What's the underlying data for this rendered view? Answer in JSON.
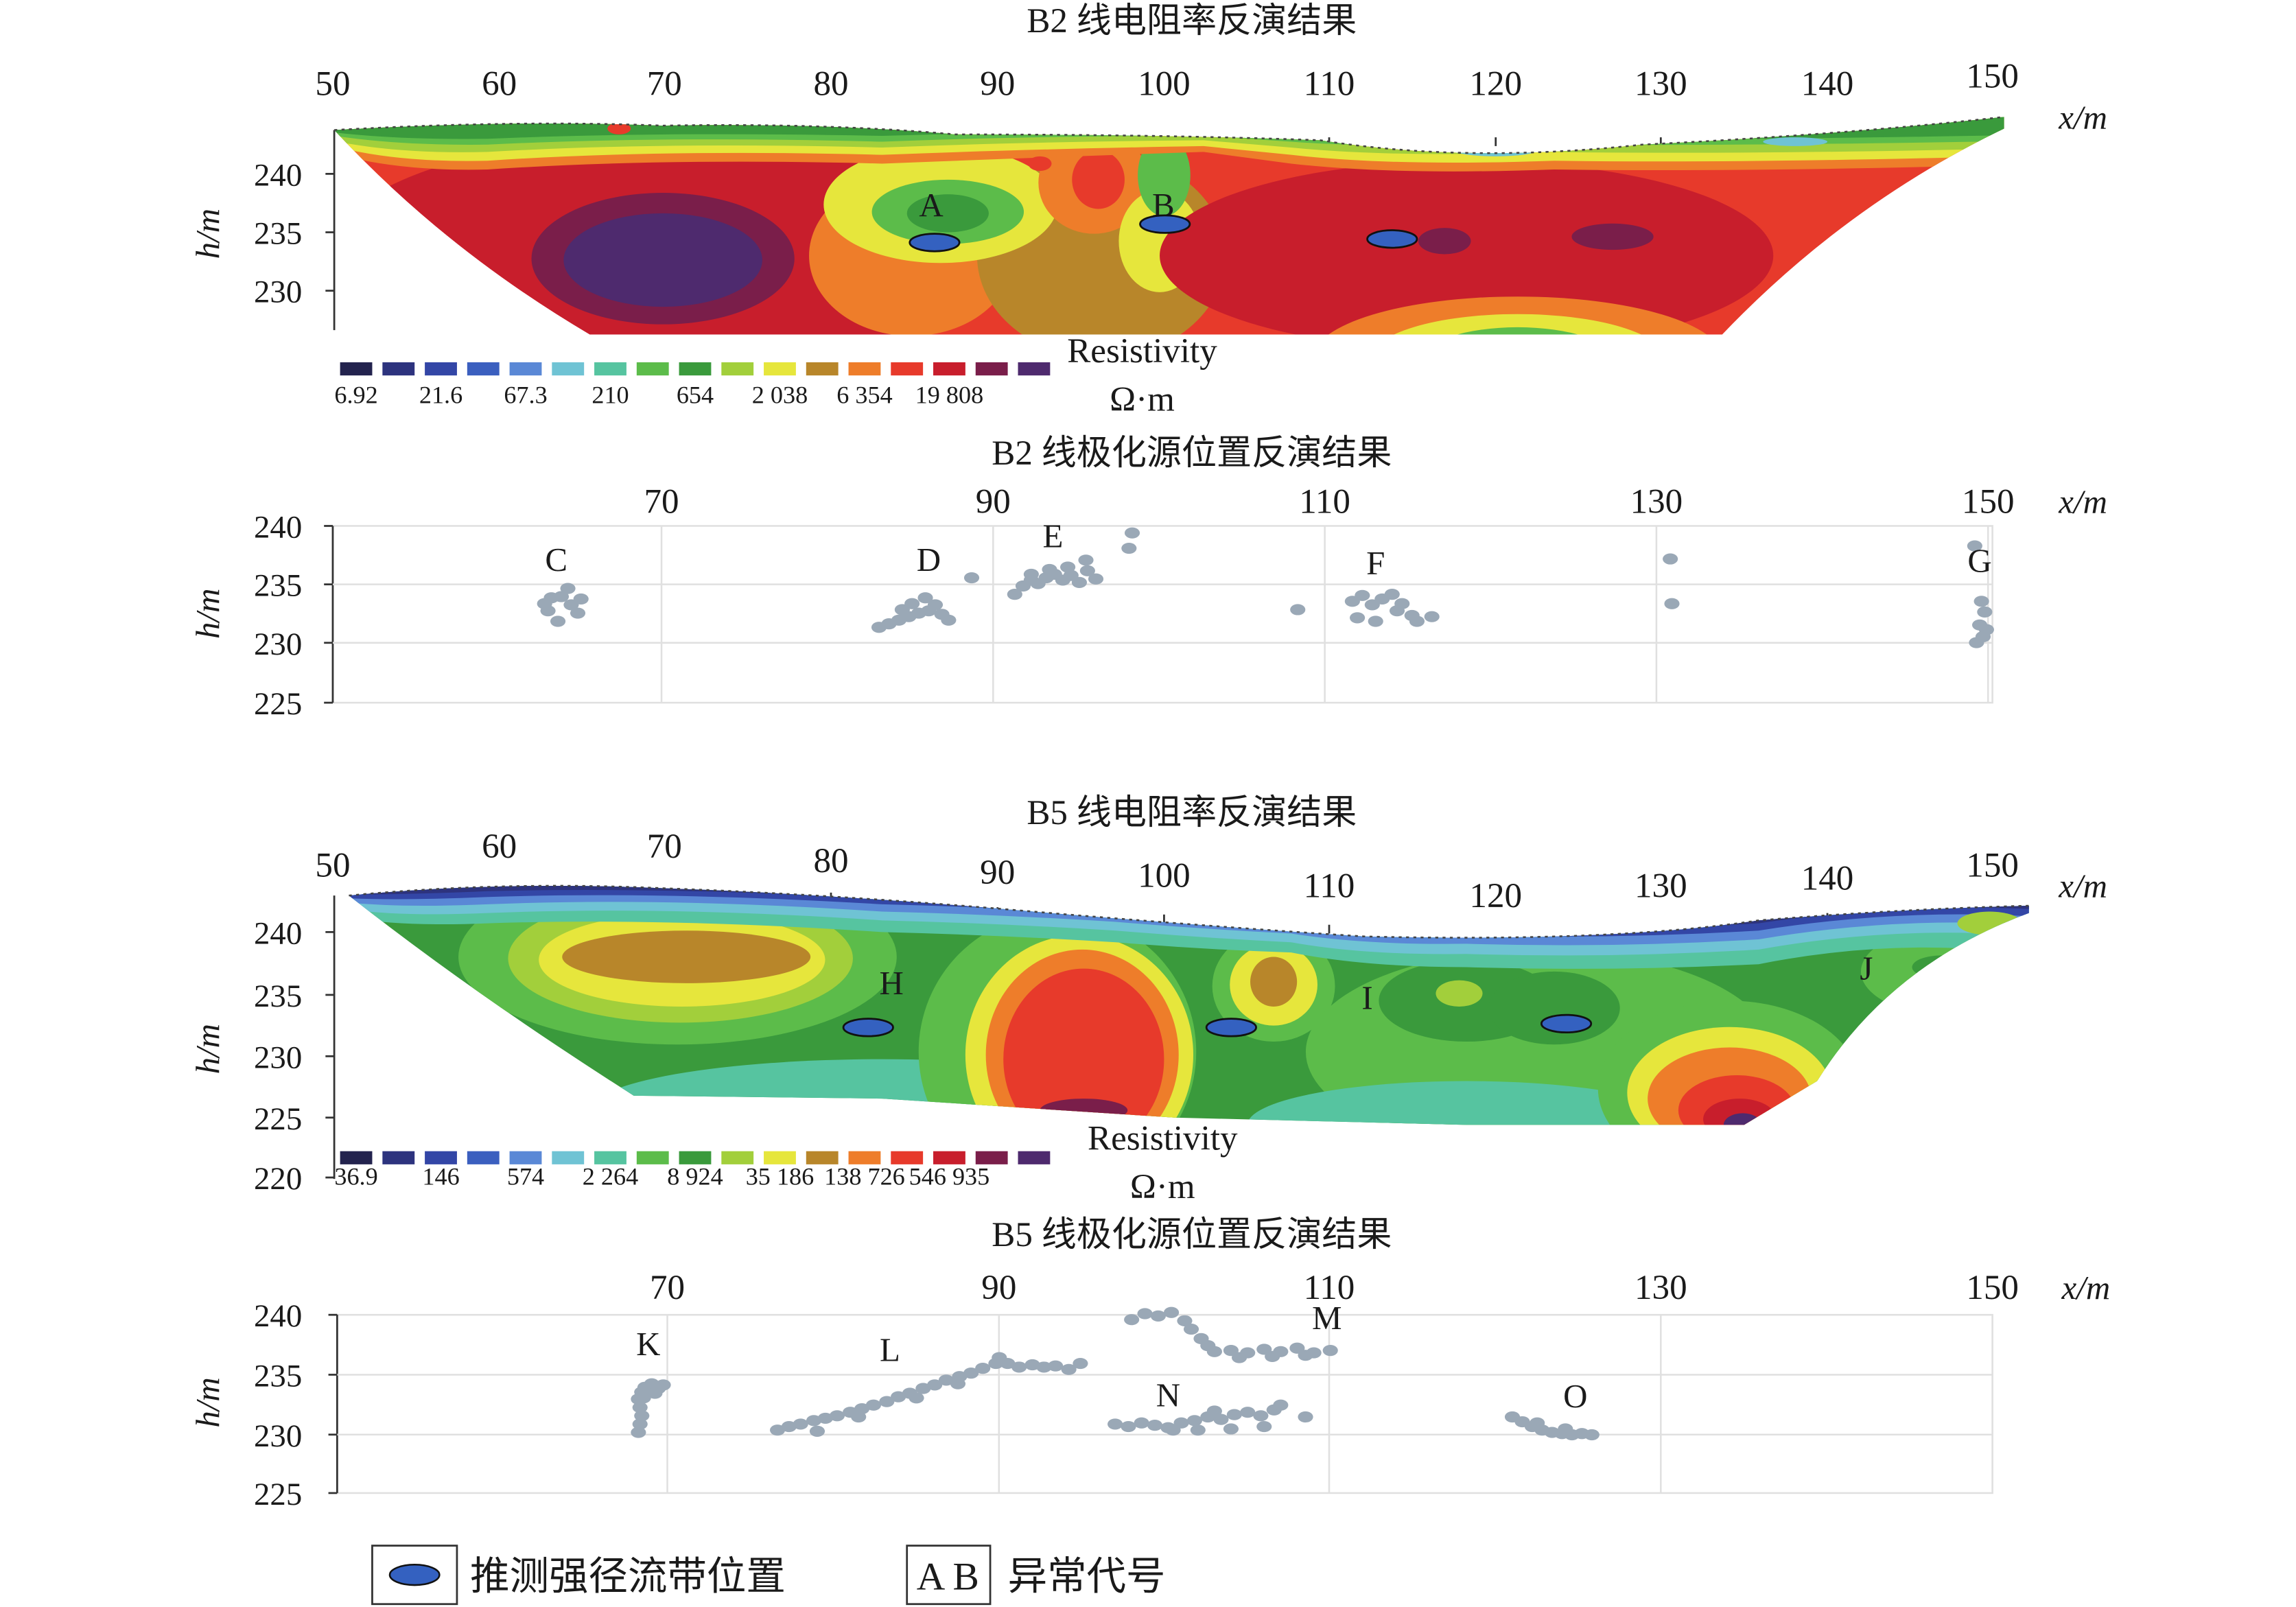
{
  "chart_data": [
    {
      "id": "b2_res",
      "type": "heatmap",
      "title": "B2 线电阻率反演结果",
      "xunit": "x/m",
      "yunit": "h/m",
      "xticks": [
        50,
        60,
        70,
        80,
        90,
        100,
        110,
        120,
        130,
        140,
        150
      ],
      "yticks": [
        240,
        235,
        230
      ],
      "xlim": [
        50,
        150
      ],
      "ylim": [
        226.5,
        244
      ],
      "colorbar": {
        "title": "Resistivity",
        "unit": "Ω·m",
        "labels": [
          "6.92",
          "21.6",
          "67.3",
          "210",
          "654",
          "2 038",
          "6 354",
          "19 808"
        ],
        "colors": [
          "#23234e",
          "#2d337e",
          "#3346a6",
          "#3b5fbf",
          "#5a88d6",
          "#6fc3d4",
          "#56c4a0",
          "#5cbc4a",
          "#3a9a3c",
          "#a2cf3b",
          "#e6e63c",
          "#b8862a",
          "#ee7d2a",
          "#e73a2b",
          "#c81e2c",
          "#7a1e4a",
          "#4e2a6e"
        ]
      },
      "markers": [
        {
          "label": "A",
          "x": 86,
          "y": 236.5
        },
        {
          "label": "B",
          "x": 100,
          "y": 236.5
        }
      ],
      "strong_runoff_zones": [
        {
          "x": 86.2,
          "y": 234.2
        },
        {
          "x": 100.1,
          "y": 235.8
        },
        {
          "x": 113.8,
          "y": 234.5
        }
      ]
    },
    {
      "id": "b2_ip",
      "type": "scatter",
      "title": "B2 线极化源位置反演结果",
      "xunit": "x/m",
      "yunit": "h/m",
      "xticks": [
        70,
        90,
        110,
        130,
        150
      ],
      "yticks": [
        240,
        235,
        230,
        225
      ],
      "xlim": [
        50,
        150
      ],
      "ylim": [
        225,
        240
      ],
      "markers": [
        {
          "label": "C",
          "x": 63.5,
          "y": 236.2
        },
        {
          "label": "D",
          "x": 86,
          "y": 236.2
        },
        {
          "label": "E",
          "x": 93.5,
          "y": 238.2
        },
        {
          "label": "F",
          "x": 113,
          "y": 235.9
        },
        {
          "label": "G",
          "x": 149.5,
          "y": 236.1
        }
      ],
      "clusters": [
        {
          "x": [
            63.2,
            63.8,
            64.4,
            63.0,
            64.8,
            65.0,
            62.8,
            63.6,
            64.2
          ],
          "y": [
            233.9,
            234.0,
            233.3,
            232.8,
            232.6,
            233.8,
            233.4,
            231.9,
            234.7
          ]
        },
        {
          "x": [
            83.0,
            83.6,
            84.2,
            84.8,
            85.4,
            86.0,
            86.4,
            85.8,
            85.0,
            84.4,
            86.8,
            87.2,
            88.6
          ],
          "y": [
            231.4,
            231.7,
            232.0,
            232.3,
            232.6,
            232.8,
            233.3,
            233.9,
            233.4,
            232.9,
            232.5,
            232.0,
            235.6
          ]
        },
        {
          "x": [
            91.2,
            91.7,
            92.2,
            92.6,
            93.1,
            93.6,
            94.1,
            94.6,
            95.1,
            95.6,
            96.1,
            95.5,
            94.4,
            93.3,
            92.2,
            98.1,
            98.3
          ],
          "y": [
            234.2,
            234.9,
            235.4,
            235.1,
            235.6,
            235.9,
            235.4,
            235.8,
            235.2,
            236.2,
            235.5,
            237.1,
            236.5,
            236.3,
            235.9,
            238.1,
            239.4
          ]
        },
        {
          "x": [
            108.3,
            111.6,
            112.2,
            112.8,
            113.4,
            114.0,
            114.6,
            115.2,
            111.9,
            113.0,
            114.3,
            116.4,
            115.5
          ],
          "y": [
            232.9,
            233.6,
            234.1,
            233.3,
            233.8,
            234.2,
            233.4,
            232.4,
            232.2,
            231.9,
            232.8,
            232.3,
            231.9
          ]
        },
        {
          "x": [
            130.8,
            130.9,
            149.2,
            149.6,
            149.8,
            149.5,
            149.7,
            149.9,
            149.3
          ],
          "y": [
            237.2,
            233.4,
            238.3,
            233.6,
            232.7,
            231.6,
            230.6,
            231.2,
            230.1
          ]
        }
      ]
    },
    {
      "id": "b5_res",
      "type": "heatmap",
      "title": "B5 线电阻率反演结果",
      "xunit": "x/m",
      "yunit": "h/m",
      "xticks": [
        50,
        60,
        70,
        80,
        90,
        100,
        110,
        120,
        130,
        140,
        150
      ],
      "yticks": [
        240,
        235,
        230,
        225,
        220
      ],
      "xlim": [
        50,
        150
      ],
      "ylim": [
        220,
        243
      ],
      "colorbar": {
        "title": "Resistivity",
        "unit": "Ω·m",
        "labels": [
          "36.9",
          "146",
          "574",
          "2 264",
          "8 924",
          "35 186",
          "138 726",
          "546 935"
        ],
        "colors": [
          "#23234e",
          "#2d337e",
          "#3346a6",
          "#3b5fbf",
          "#5a88d6",
          "#6fc3d4",
          "#56c4a0",
          "#5cbc4a",
          "#3a9a3c",
          "#a2cf3b",
          "#e6e63c",
          "#b8862a",
          "#ee7d2a",
          "#e73a2b",
          "#c81e2c",
          "#7a1e4a",
          "#4e2a6e"
        ]
      },
      "markers": [
        {
          "label": "H",
          "x": 83.6,
          "y": 235
        },
        {
          "label": "I",
          "x": 112.3,
          "y": 233.8
        },
        {
          "label": "J",
          "x": 142.4,
          "y": 236.2
        }
      ],
      "strong_runoff_zones": [
        {
          "x": 82.2,
          "y": 232.3
        },
        {
          "x": 104.1,
          "y": 232.3
        },
        {
          "x": 124.3,
          "y": 232.6
        }
      ]
    },
    {
      "id": "b5_ip",
      "type": "scatter",
      "title": "B5 线极化源位置反演结果",
      "xunit": "x/m",
      "yunit": "h/m",
      "xticks": [
        70,
        90,
        110,
        130,
        150
      ],
      "yticks": [
        240,
        235,
        230,
        225
      ],
      "xlim": [
        50,
        150
      ],
      "ylim": [
        225,
        240
      ],
      "markers": [
        {
          "label": "K",
          "x": 68.8,
          "y": 236.6
        },
        {
          "label": "L",
          "x": 83.4,
          "y": 236.1
        },
        {
          "label": "M",
          "x": 109.8,
          "y": 238.8
        },
        {
          "label": "N",
          "x": 100.2,
          "y": 232.3
        },
        {
          "label": "O",
          "x": 124.8,
          "y": 232.2
        }
      ],
      "clusters": [
        {
          "x": [
            68.2,
            68.3,
            68.4,
            68.3,
            68.2,
            68.4,
            68.6,
            69.0,
            69.4,
            69.7,
            68.5,
            69.2
          ],
          "y": [
            230.1,
            230.8,
            231.5,
            232.2,
            232.9,
            233.5,
            233.9,
            234.2,
            233.8,
            234.1,
            233.0,
            233.4
          ]
        },
        {
          "x": [
            76.6,
            77.3,
            78.0,
            78.8,
            79.5,
            80.2,
            81.0,
            81.7,
            82.4,
            83.2,
            83.9,
            84.6,
            85.4,
            86.1,
            86.8,
            87.6,
            88.3,
            89.0,
            89.8,
            90.5,
            91.2,
            92.0,
            92.7,
            93.4,
            94.2,
            94.9,
            85.0,
            87.5,
            90.0,
            79.0,
            81.5
          ],
          "y": [
            230.3,
            230.6,
            230.8,
            231.1,
            231.3,
            231.5,
            231.8,
            232.1,
            232.4,
            232.7,
            233.1,
            233.4,
            233.8,
            234.1,
            234.5,
            234.8,
            235.1,
            235.5,
            235.9,
            235.9,
            235.6,
            235.8,
            235.6,
            235.7,
            235.4,
            235.9,
            233.0,
            234.2,
            236.4,
            230.2,
            231.4
          ]
        },
        {
          "x": [
            97.0,
            97.8,
            98.6,
            99.4,
            100.2,
            101.0,
            101.8,
            102.6,
            103.4,
            104.2,
            105.0,
            105.8,
            106.6,
            102.0,
            104.0,
            106.0,
            107.0,
            100.5,
            103.0,
            108.5
          ],
          "y": [
            230.8,
            230.6,
            230.9,
            230.7,
            230.5,
            230.9,
            231.1,
            231.4,
            231.2,
            231.6,
            231.8,
            231.5,
            232.0,
            230.3,
            230.4,
            230.6,
            232.4,
            230.3,
            231.9,
            231.4
          ]
        },
        {
          "x": [
            98.0,
            98.8,
            99.6,
            100.4,
            101.2,
            101.6,
            102.2,
            102.6,
            103.0,
            104.0,
            105.0,
            106.0,
            107.0,
            108.0,
            109.0,
            110.0,
            104.5,
            106.5,
            108.5
          ],
          "y": [
            239.6,
            240.1,
            239.9,
            240.2,
            239.5,
            238.8,
            238.0,
            237.4,
            236.9,
            237.0,
            236.8,
            237.1,
            236.9,
            237.2,
            236.8,
            237.0,
            236.4,
            236.5,
            236.6
          ]
        },
        {
          "x": [
            121.0,
            121.6,
            122.2,
            122.8,
            123.4,
            124.0,
            124.6,
            125.2,
            125.8,
            122.5,
            124.2
          ],
          "y": [
            231.4,
            231.0,
            230.6,
            230.3,
            230.1,
            230.0,
            229.9,
            230.0,
            229.9,
            230.9,
            230.4
          ]
        }
      ]
    }
  ],
  "legend": {
    "ellipse_label": "推测强径流带位置",
    "code_box_text": "A B",
    "code_label": "异常代号"
  }
}
